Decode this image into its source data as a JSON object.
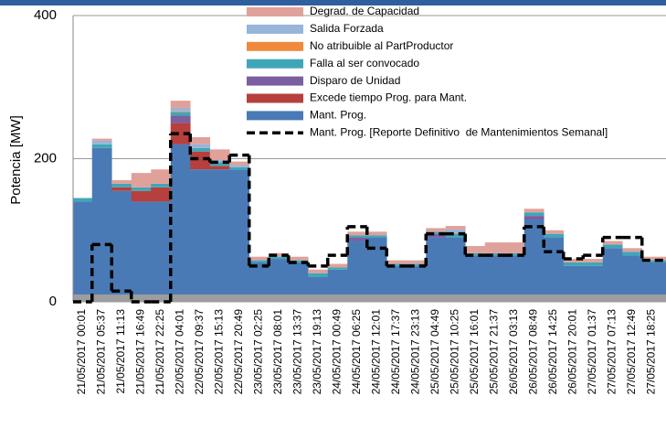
{
  "chart_data": {
    "type": "stacked-area-step",
    "y_label": "Potencia [MW]",
    "categories": [
      "21/05/2017 00:01",
      "21/05/2017 05:37",
      "21/05/2017 11:13",
      "21/05/2017 16:49",
      "21/05/2017 22:25",
      "22/05/2017 04:01",
      "22/05/2017 09:37",
      "22/05/2017 15:13",
      "22/05/2017 20:49",
      "23/05/2017 02:25",
      "23/05/2017 08:01",
      "23/05/2017 13:37",
      "23/05/2017 19:13",
      "24/05/2017 00:49",
      "24/05/2017 06:25",
      "24/05/2017 12:01",
      "24/05/2017 17:37",
      "24/05/2017 23:13",
      "25/05/2017 04:49",
      "25/05/2017 10:25",
      "25/05/2017 16:01",
      "25/05/2017 21:37",
      "26/05/2017 03:13",
      "26/05/2017 08:49",
      "26/05/2017 14:25",
      "26/05/2017 20:01",
      "27/05/2017 01:37",
      "27/05/2017 07:13",
      "27/05/2017 12:49",
      "27/05/2017 18:25"
    ],
    "series": [
      {
        "name": "Mant. Prog.",
        "color": "#4a7ab5",
        "values": [
          140,
          215,
          155,
          140,
          140,
          220,
          185,
          185,
          185,
          55,
          60,
          55,
          35,
          45,
          85,
          90,
          50,
          50,
          90,
          90,
          65,
          65,
          65,
          115,
          90,
          50,
          50,
          75,
          65,
          55
        ]
      },
      {
        "name": "Excede tiempo Prog. para Mant.",
        "color": "#b5403d",
        "values": [
          0,
          0,
          5,
          15,
          20,
          30,
          25,
          5,
          0,
          0,
          0,
          0,
          0,
          0,
          0,
          0,
          0,
          0,
          0,
          0,
          0,
          0,
          0,
          0,
          0,
          0,
          0,
          0,
          0,
          0
        ]
      },
      {
        "name": "Disparo de Unidad",
        "color": "#7c5fa0",
        "values": [
          0,
          0,
          0,
          0,
          0,
          10,
          0,
          0,
          0,
          0,
          0,
          0,
          0,
          0,
          5,
          0,
          0,
          0,
          5,
          0,
          0,
          0,
          0,
          5,
          0,
          0,
          0,
          0,
          0,
          0
        ]
      },
      {
        "name": "Falla al ser convocado",
        "color": "#3fa6b8",
        "values": [
          5,
          5,
          5,
          5,
          5,
          5,
          5,
          5,
          3,
          3,
          3,
          3,
          5,
          3,
          3,
          3,
          3,
          3,
          3,
          5,
          3,
          3,
          3,
          5,
          5,
          5,
          5,
          5,
          5,
          3
        ]
      },
      {
        "name": "No atribuible al PartProductor",
        "color": "#ef8a3c",
        "values": [
          0,
          0,
          0,
          0,
          0,
          1,
          0,
          0,
          0,
          0,
          0,
          0,
          0,
          0,
          0,
          0,
          0,
          0,
          0,
          1,
          0,
          0,
          0,
          0,
          0,
          0,
          0,
          0,
          0,
          0
        ]
      },
      {
        "name": "Salida Forzada",
        "color": "#97b4d9",
        "values": [
          0,
          5,
          0,
          0,
          0,
          5,
          5,
          3,
          3,
          0,
          0,
          0,
          0,
          0,
          0,
          0,
          0,
          0,
          0,
          5,
          0,
          0,
          0,
          0,
          0,
          0,
          0,
          0,
          0,
          0
        ]
      },
      {
        "name": "Degrad. de Capacidad",
        "color": "#e0a19b",
        "values": [
          0,
          3,
          5,
          20,
          20,
          10,
          10,
          15,
          5,
          5,
          5,
          5,
          5,
          5,
          5,
          5,
          5,
          5,
          5,
          5,
          10,
          15,
          15,
          5,
          5,
          5,
          5,
          5,
          5,
          5
        ]
      }
    ],
    "line": {
      "name": "Mant. Prog. [Reporte Definitivo  de Mantenimientos Semanal]",
      "color": "#000000",
      "values": [
        0,
        80,
        15,
        0,
        0,
        235,
        200,
        195,
        205,
        50,
        65,
        55,
        50,
        65,
        105,
        75,
        50,
        50,
        95,
        95,
        65,
        65,
        65,
        105,
        70,
        60,
        65,
        90,
        90,
        58
      ]
    },
    "ylim": [
      0,
      400
    ],
    "yticks": [
      0,
      200,
      400
    ],
    "grid": true
  }
}
